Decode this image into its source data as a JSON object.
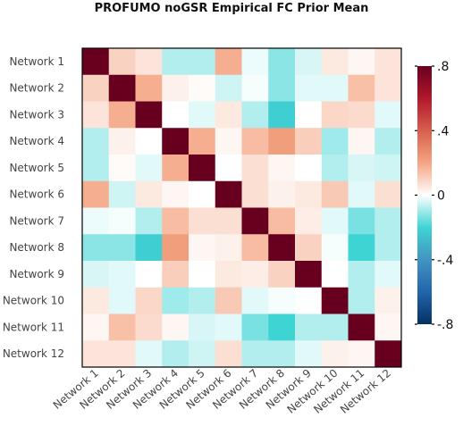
{
  "chart_data": {
    "type": "heatmap",
    "title": "PROFUMO noGSR Empirical FC Prior Mean",
    "xlabel": "",
    "ylabel": "",
    "labels": [
      "Network 1",
      "Network 2",
      "Network 3",
      "Network 4",
      "Network 5",
      "Network 6",
      "Network 7",
      "Network 8",
      "Network 9",
      "Network 10",
      "Network 11",
      "Network 12"
    ],
    "values": [
      [
        1.0,
        0.1,
        0.06,
        -0.08,
        -0.08,
        0.18,
        -0.02,
        -0.12,
        -0.04,
        0.05,
        0.02,
        0.06
      ],
      [
        0.1,
        1.0,
        0.18,
        0.03,
        0.01,
        -0.05,
        -0.01,
        -0.12,
        -0.03,
        -0.03,
        0.14,
        0.06
      ],
      [
        0.06,
        0.18,
        1.0,
        0.0,
        -0.03,
        0.05,
        -0.08,
        -0.22,
        0.0,
        0.09,
        0.08,
        -0.03
      ],
      [
        -0.08,
        0.03,
        0.0,
        1.0,
        0.18,
        0.02,
        0.15,
        0.22,
        0.11,
        -0.1,
        0.02,
        -0.08
      ],
      [
        -0.08,
        0.01,
        -0.03,
        0.18,
        1.0,
        0.0,
        0.07,
        0.02,
        0.0,
        -0.08,
        -0.04,
        -0.05
      ],
      [
        0.18,
        -0.05,
        0.05,
        0.02,
        0.0,
        1.0,
        0.07,
        0.03,
        0.05,
        0.12,
        -0.03,
        0.07
      ],
      [
        -0.02,
        -0.01,
        -0.08,
        0.15,
        0.07,
        0.07,
        1.0,
        0.15,
        0.04,
        -0.03,
        -0.14,
        -0.08
      ],
      [
        -0.12,
        -0.12,
        -0.22,
        0.22,
        0.02,
        0.03,
        0.15,
        1.0,
        0.1,
        -0.01,
        -0.2,
        -0.08
      ],
      [
        -0.04,
        -0.03,
        0.0,
        0.11,
        0.0,
        0.05,
        0.04,
        0.1,
        1.0,
        0.0,
        -0.08,
        -0.03
      ],
      [
        0.05,
        -0.03,
        0.09,
        -0.1,
        -0.08,
        0.12,
        -0.03,
        -0.01,
        0.0,
        1.0,
        -0.08,
        0.03
      ],
      [
        0.02,
        0.14,
        0.08,
        0.02,
        -0.04,
        -0.03,
        -0.14,
        -0.2,
        -0.08,
        -0.08,
        1.0,
        0.02
      ],
      [
        0.06,
        0.06,
        -0.03,
        -0.08,
        -0.05,
        0.07,
        -0.08,
        -0.08,
        -0.03,
        0.03,
        0.02,
        1.0
      ]
    ],
    "colorbar": {
      "min": -0.8,
      "max": 0.8,
      "ticks": [
        0.8,
        0.4,
        0,
        -0.4,
        -0.8
      ],
      "tick_labels": [
        ".8",
        ".4",
        "0",
        "-.4",
        "-.8"
      ],
      "colors": [
        "#053061",
        "#2166ac",
        "#4393c3",
        "#3fd4d4",
        "#ffffff",
        "#f4a582",
        "#d6604d",
        "#b2182b",
        "#67001f"
      ]
    },
    "grid": false
  }
}
